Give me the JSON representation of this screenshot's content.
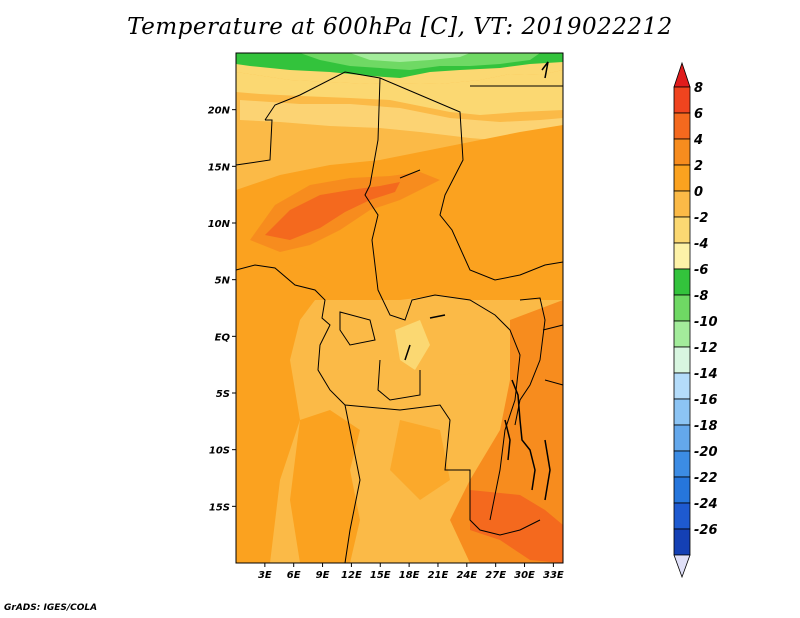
{
  "title": "Temperature at 600hPa [C], VT: 2019022212",
  "footer": "GrADS: IGES/COLA",
  "map": {
    "lon_range": [
      0,
      34
    ],
    "lat_range": [
      -20,
      25
    ],
    "lon_ticks": [
      {
        "value": 3,
        "label": "3E"
      },
      {
        "value": 6,
        "label": "6E"
      },
      {
        "value": 9,
        "label": "9E"
      },
      {
        "value": 12,
        "label": "12E"
      },
      {
        "value": 15,
        "label": "15E"
      },
      {
        "value": 18,
        "label": "18E"
      },
      {
        "value": 21,
        "label": "21E"
      },
      {
        "value": 24,
        "label": "24E"
      },
      {
        "value": 27,
        "label": "27E"
      },
      {
        "value": 30,
        "label": "30E"
      },
      {
        "value": 33,
        "label": "33E"
      }
    ],
    "lat_ticks": [
      {
        "value": 20,
        "label": "20N"
      },
      {
        "value": 15,
        "label": "15N"
      },
      {
        "value": 10,
        "label": "10N"
      },
      {
        "value": 5,
        "label": "5N"
      },
      {
        "value": 0,
        "label": "EQ"
      },
      {
        "value": -5,
        "label": "5S"
      },
      {
        "value": -10,
        "label": "10S"
      },
      {
        "value": -15,
        "label": "15S"
      }
    ]
  },
  "colorbar": {
    "levels": [
      {
        "label": "8",
        "color": "#f0441f"
      },
      {
        "label": "6",
        "color": "#f4691e"
      },
      {
        "label": "4",
        "color": "#f78c1e"
      },
      {
        "label": "2",
        "color": "#fba21f"
      },
      {
        "label": "0",
        "color": "#fbba47"
      },
      {
        "label": "-2",
        "color": "#fbd872"
      },
      {
        "label": "-4",
        "color": "#fdf2a8"
      },
      {
        "label": "-6",
        "color": "#33c33c"
      },
      {
        "label": "-8",
        "color": "#6fd964"
      },
      {
        "label": "-10",
        "color": "#a3ec9b"
      },
      {
        "label": "-12",
        "color": "#d8f6e0"
      },
      {
        "label": "-14",
        "color": "#b4dcfa"
      },
      {
        "label": "-16",
        "color": "#8cc4f4"
      },
      {
        "label": "-18",
        "color": "#64a8ec"
      },
      {
        "label": "-20",
        "color": "#3c8ce4"
      },
      {
        "label": "-22",
        "color": "#2676dc"
      },
      {
        "label": "-24",
        "color": "#1e5ad0"
      },
      {
        "label": "-26",
        "color": "#1440b4"
      }
    ],
    "top_color": "#e01c1c",
    "bottom_color": "#e0e0f8",
    "deepest_color": "#0a1a80"
  }
}
